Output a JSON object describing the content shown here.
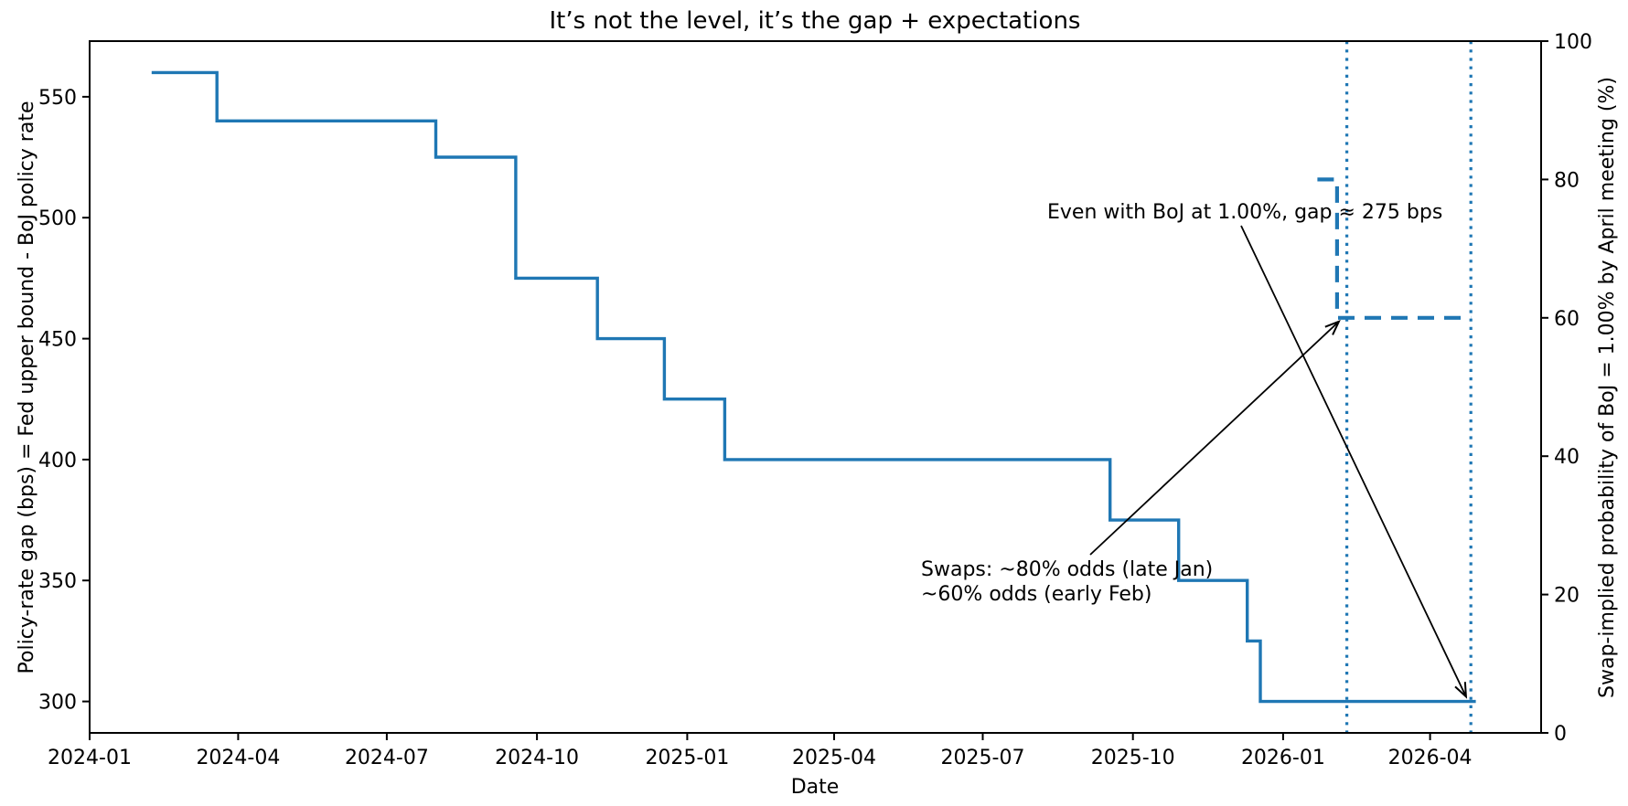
{
  "figure": {
    "background": "#ffffff",
    "accent_color": "#1f77b4",
    "frame_color": "#000000",
    "text_color": "#000000"
  },
  "chart_data": {
    "type": "line",
    "title": "It’s not the level, it’s the gap + expectations",
    "xlabel": "Date",
    "ylabel_left": "Policy-rate gap (bps) = Fed upper bound - BoJ policy rate",
    "ylabel_right": "Swap-implied probability of BoJ = 1.00% by April meeting (%)",
    "grid": false,
    "legend": "none",
    "x_range": [
      "2024-01-01",
      "2026-06-08"
    ],
    "x_ticks": [
      {
        "date": "2024-01-01",
        "label": "2024-01"
      },
      {
        "date": "2024-04-01",
        "label": "2024-04"
      },
      {
        "date": "2024-07-01",
        "label": "2024-07"
      },
      {
        "date": "2024-10-01",
        "label": "2024-10"
      },
      {
        "date": "2025-01-01",
        "label": "2025-01"
      },
      {
        "date": "2025-04-01",
        "label": "2025-04"
      },
      {
        "date": "2025-07-01",
        "label": "2025-07"
      },
      {
        "date": "2025-10-01",
        "label": "2025-10"
      },
      {
        "date": "2026-01-01",
        "label": "2026-01"
      },
      {
        "date": "2026-04-01",
        "label": "2026-04"
      }
    ],
    "ylim_left": [
      287,
      573
    ],
    "yticks_left": [
      300,
      350,
      400,
      450,
      500,
      550
    ],
    "ylim_right": [
      0,
      100
    ],
    "yticks_right": [
      0,
      20,
      40,
      60,
      80,
      100
    ],
    "series": [
      {
        "name": "Policy-rate gap (bps): Fed upper bound - BoJ policy rate",
        "axis": "left",
        "line_style": "solid",
        "draw_style": "steps-post",
        "color": "#1f77b4",
        "points": [
          [
            "2024-02-08",
            560
          ],
          [
            "2024-03-19",
            540
          ],
          [
            "2024-07-31",
            525
          ],
          [
            "2024-09-18",
            475
          ],
          [
            "2024-11-07",
            450
          ],
          [
            "2024-12-18",
            425
          ],
          [
            "2025-01-24",
            400
          ],
          [
            "2025-09-17",
            375
          ],
          [
            "2025-10-29",
            350
          ],
          [
            "2025-12-10",
            325
          ],
          [
            "2025-12-18",
            300
          ],
          [
            "2026-04-29",
            300
          ]
        ]
      },
      {
        "name": "Swap-implied probability of BoJ = 1.00% by April meeting (%)",
        "axis": "right",
        "line_style": "dashed",
        "draw_style": "steps-post",
        "color": "#1f77b4",
        "points": [
          [
            "2026-01-22",
            80
          ],
          [
            "2026-02-03",
            60
          ],
          [
            "2026-04-26",
            60
          ]
        ]
      }
    ],
    "vlines": [
      {
        "date": "2026-02-09",
        "style": "dotted",
        "color": "#1f77b4"
      },
      {
        "date": "2026-04-26",
        "style": "dotted",
        "color": "#1f77b4"
      }
    ],
    "annotations": [
      {
        "text": "Even with BoJ at 1.00%, gap ≈ 275 bps",
        "arrow_to": {
          "axis": "left",
          "date": "2026-04-23",
          "value": 302
        }
      },
      {
        "lines": [
          "Swaps: ~80% odds (late Jan)",
          "~60% odds (early Feb)"
        ],
        "arrow_to": {
          "axis": "right",
          "date": "2026-02-03",
          "value": 60
        }
      }
    ]
  }
}
